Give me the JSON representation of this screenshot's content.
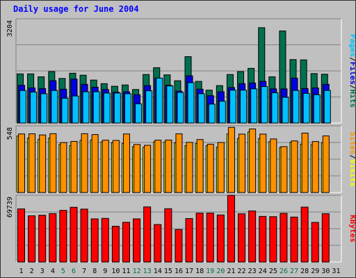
{
  "title": "Daily usage for June 2004",
  "chart_data": [
    {
      "type": "bar",
      "panel": "hits-files-pages",
      "x": [
        "1",
        "2",
        "3",
        "4",
        "5",
        "6",
        "7",
        "8",
        "9",
        "10",
        "11",
        "12",
        "13",
        "14",
        "15",
        "16",
        "17",
        "18",
        "19",
        "20",
        "21",
        "22",
        "23",
        "24",
        "25",
        "26",
        "27",
        "28",
        "29",
        "30",
        "31"
      ],
      "weekend_days": [
        "5",
        "6",
        "12",
        "13",
        "19",
        "20",
        "26",
        "27"
      ],
      "ymax_label": "3204",
      "ylim": [
        0,
        3204
      ],
      "series": [
        {
          "name": "Hits",
          "color": "#007050",
          "values": [
            1510,
            1510,
            1420,
            1580,
            1370,
            1530,
            1470,
            1320,
            1210,
            1130,
            1170,
            1030,
            1490,
            1700,
            1480,
            1300,
            2040,
            1280,
            1010,
            1150,
            1490,
            1580,
            1680,
            2930,
            1420,
            2830,
            1950,
            1940,
            1520,
            1500,
            null
          ]
        },
        {
          "name": "Files",
          "color": "#0000e0",
          "values": [
            1160,
            1080,
            1060,
            1300,
            1040,
            1350,
            1190,
            1100,
            1030,
            950,
            960,
            870,
            1150,
            1380,
            1160,
            980,
            1450,
            1040,
            840,
            960,
            1090,
            1210,
            1230,
            1280,
            1050,
            1050,
            1380,
            1060,
            1080,
            1190,
            null
          ]
        },
        {
          "name": "Pages",
          "color": "#00c0ff",
          "values": [
            1000,
            950,
            900,
            1000,
            760,
            830,
            960,
            960,
            920,
            920,
            900,
            590,
            990,
            1380,
            1140,
            940,
            1240,
            900,
            580,
            670,
            1010,
            1010,
            1050,
            1120,
            930,
            790,
            1000,
            910,
            870,
            1000,
            null
          ]
        }
      ],
      "axis_label_parts": [
        "Pages",
        "/",
        "Files",
        "/",
        "Hits"
      ]
    },
    {
      "type": "bar",
      "panel": "sites-visits",
      "x": [
        "1",
        "2",
        "3",
        "4",
        "5",
        "6",
        "7",
        "8",
        "9",
        "10",
        "11",
        "12",
        "13",
        "14",
        "15",
        "16",
        "17",
        "18",
        "19",
        "20",
        "21",
        "22",
        "23",
        "24",
        "25",
        "26",
        "27",
        "28",
        "29",
        "30",
        "31"
      ],
      "ymax_label": "548",
      "ylim": [
        0,
        548
      ],
      "series": [
        {
          "name": "Visits",
          "color": "#ffff00",
          "values": [
            464,
            447,
            437,
            446,
            395,
            386,
            429,
            431,
            416,
            409,
            402,
            376,
            372,
            416,
            416,
            408,
            385,
            402,
            385,
            372,
            481,
            444,
            498,
            444,
            418,
            370,
            413,
            396,
            393,
            409,
            null
          ]
        },
        {
          "name": "Sites",
          "color": "#ff9000",
          "values": [
            481,
            482,
            473,
            483,
            410,
            420,
            483,
            476,
            430,
            428,
            481,
            395,
            388,
            430,
            431,
            482,
            412,
            435,
            397,
            411,
            535,
            480,
            522,
            480,
            440,
            377,
            424,
            488,
            419,
            465,
            null
          ]
        }
      ],
      "axis_label_parts": [
        "Sites",
        "/",
        "Visits"
      ]
    },
    {
      "type": "bar",
      "panel": "kbytes",
      "x": [
        "1",
        "2",
        "3",
        "4",
        "5",
        "6",
        "7",
        "8",
        "9",
        "10",
        "11",
        "12",
        "13",
        "14",
        "15",
        "16",
        "17",
        "18",
        "19",
        "20",
        "21",
        "22",
        "23",
        "24",
        "25",
        "26",
        "27",
        "28",
        "29",
        "30",
        "31"
      ],
      "ymax_label": "69739",
      "ylim": [
        0,
        69739
      ],
      "series": [
        {
          "name": "KBytes",
          "color": "#ff0000",
          "values": [
            55500,
            48300,
            48900,
            50600,
            54000,
            57200,
            55300,
            45100,
            45600,
            37400,
            41500,
            45100,
            57600,
            39200,
            55700,
            33900,
            45400,
            51100,
            51100,
            49200,
            69700,
            50400,
            53400,
            47700,
            47400,
            50900,
            47000,
            57400,
            41400,
            50500,
            null
          ]
        }
      ],
      "axis_label_parts": [
        "KBytes"
      ]
    }
  ]
}
